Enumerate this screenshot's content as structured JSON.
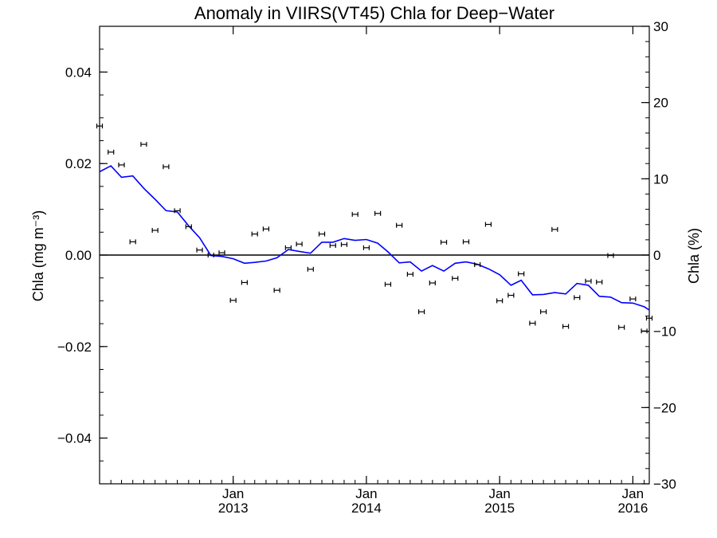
{
  "chart_data": {
    "type": "scatter",
    "title": "Anomaly in VIIRS(VT45) Chla for Deep−Water",
    "ylabel_left": "Chla (mg m⁻³)",
    "ylabel_right": "Chla (%)",
    "xlabel": "",
    "ylim_left": [
      -0.05,
      0.05
    ],
    "ylim_right": [
      -30,
      30
    ],
    "xlim": [
      "2012-01-01",
      "2016-02-15"
    ],
    "grid": false,
    "zero_line": true,
    "left_ticks": [
      {
        "value": 0.04,
        "label": "0.04"
      },
      {
        "value": 0.02,
        "label": "0.02"
      },
      {
        "value": 0.0,
        "label": "0.00"
      },
      {
        "value": -0.02,
        "label": "−0.02"
      },
      {
        "value": -0.04,
        "label": "−0.04"
      }
    ],
    "right_ticks": [
      {
        "value": 30,
        "label": "30"
      },
      {
        "value": 20,
        "label": "20"
      },
      {
        "value": 10,
        "label": "10"
      },
      {
        "value": 0,
        "label": "0"
      },
      {
        "value": -10,
        "label": "−10"
      },
      {
        "value": -20,
        "label": "−20"
      },
      {
        "value": -30,
        "label": "−30"
      }
    ],
    "x_ticks": [
      {
        "date": "2013-01-01",
        "line1": "Jan",
        "line2": "2013"
      },
      {
        "date": "2014-01-01",
        "line1": "Jan",
        "line2": "2014"
      },
      {
        "date": "2015-01-01",
        "line1": "Jan",
        "line2": "2015"
      },
      {
        "date": "2016-01-01",
        "line1": "Jan",
        "line2": "2016"
      }
    ],
    "series": [
      {
        "kind": "errorbar_points",
        "color": "#000000",
        "points": [
          {
            "x": "2012-01-01",
            "y": 0.0282
          },
          {
            "x": "2012-02-01",
            "y": 0.0225
          },
          {
            "x": "2012-03-01",
            "y": 0.0197
          },
          {
            "x": "2012-04-01",
            "y": 0.0029
          },
          {
            "x": "2012-05-01",
            "y": 0.0242
          },
          {
            "x": "2012-06-01",
            "y": 0.0054
          },
          {
            "x": "2012-07-01",
            "y": 0.0193
          },
          {
            "x": "2012-08-01",
            "y": 0.0097
          },
          {
            "x": "2012-09-01",
            "y": 0.0062
          },
          {
            "x": "2012-10-01",
            "y": 0.0011
          },
          {
            "x": "2012-11-01",
            "y": 0.0
          },
          {
            "x": "2012-12-01",
            "y": 0.0005
          },
          {
            "x": "2013-01-01",
            "y": -0.0099
          },
          {
            "x": "2013-02-01",
            "y": -0.006
          },
          {
            "x": "2013-03-01",
            "y": 0.0046
          },
          {
            "x": "2013-04-01",
            "y": 0.0057
          },
          {
            "x": "2013-05-01",
            "y": -0.0077
          },
          {
            "x": "2013-06-01",
            "y": 0.0016
          },
          {
            "x": "2013-07-01",
            "y": 0.0024
          },
          {
            "x": "2013-08-01",
            "y": -0.0031
          },
          {
            "x": "2013-09-01",
            "y": 0.0046
          },
          {
            "x": "2013-10-01",
            "y": 0.0021
          },
          {
            "x": "2013-11-01",
            "y": 0.0023
          },
          {
            "x": "2013-12-01",
            "y": 0.0089
          },
          {
            "x": "2014-01-01",
            "y": 0.0016
          },
          {
            "x": "2014-02-01",
            "y": 0.0091
          },
          {
            "x": "2014-03-01",
            "y": -0.0064
          },
          {
            "x": "2014-04-01",
            "y": 0.0065
          },
          {
            "x": "2014-05-01",
            "y": -0.0042
          },
          {
            "x": "2014-06-01",
            "y": -0.0124
          },
          {
            "x": "2014-07-01",
            "y": -0.0061
          },
          {
            "x": "2014-08-01",
            "y": 0.0028
          },
          {
            "x": "2014-09-01",
            "y": -0.0051
          },
          {
            "x": "2014-10-01",
            "y": 0.0029
          },
          {
            "x": "2014-11-01",
            "y": -0.0021
          },
          {
            "x": "2014-12-01",
            "y": 0.0067
          },
          {
            "x": "2015-01-01",
            "y": -0.01
          },
          {
            "x": "2015-02-01",
            "y": -0.0088
          },
          {
            "x": "2015-03-01",
            "y": -0.0041
          },
          {
            "x": "2015-04-01",
            "y": -0.0149
          },
          {
            "x": "2015-05-01",
            "y": -0.0124
          },
          {
            "x": "2015-06-01",
            "y": 0.0056
          },
          {
            "x": "2015-07-01",
            "y": -0.0156
          },
          {
            "x": "2015-08-01",
            "y": -0.0093
          },
          {
            "x": "2015-09-01",
            "y": -0.0057
          },
          {
            "x": "2015-10-01",
            "y": -0.0059
          },
          {
            "x": "2015-11-01",
            "y": -0.0001
          },
          {
            "x": "2015-12-01",
            "y": -0.0158
          },
          {
            "x": "2016-01-01",
            "y": -0.0096
          },
          {
            "x": "2016-02-01",
            "y": -0.0166
          },
          {
            "x": "2016-02-15",
            "y": -0.0138
          }
        ]
      },
      {
        "kind": "line",
        "color": "#0000ff",
        "points": [
          {
            "x": "2012-01-01",
            "y": 0.0182
          },
          {
            "x": "2012-02-01",
            "y": 0.0195
          },
          {
            "x": "2012-03-01",
            "y": 0.017
          },
          {
            "x": "2012-04-01",
            "y": 0.0173
          },
          {
            "x": "2012-05-01",
            "y": 0.0146
          },
          {
            "x": "2012-06-01",
            "y": 0.0122
          },
          {
            "x": "2012-07-01",
            "y": 0.0097
          },
          {
            "x": "2012-08-01",
            "y": 0.0094
          },
          {
            "x": "2012-09-01",
            "y": 0.0064
          },
          {
            "x": "2012-10-01",
            "y": 0.0038
          },
          {
            "x": "2012-11-01",
            "y": -0.0001
          },
          {
            "x": "2012-12-01",
            "y": -0.0003
          },
          {
            "x": "2013-01-01",
            "y": -0.0008
          },
          {
            "x": "2013-02-01",
            "y": -0.0018
          },
          {
            "x": "2013-03-01",
            "y": -0.0016
          },
          {
            "x": "2013-04-01",
            "y": -0.0013
          },
          {
            "x": "2013-05-01",
            "y": -0.0006
          },
          {
            "x": "2013-06-01",
            "y": 0.0012
          },
          {
            "x": "2013-07-01",
            "y": 0.0008
          },
          {
            "x": "2013-08-01",
            "y": 0.0004
          },
          {
            "x": "2013-09-01",
            "y": 0.0028
          },
          {
            "x": "2013-10-01",
            "y": 0.0028
          },
          {
            "x": "2013-11-01",
            "y": 0.0036
          },
          {
            "x": "2013-12-01",
            "y": 0.0032
          },
          {
            "x": "2014-01-01",
            "y": 0.0034
          },
          {
            "x": "2014-02-01",
            "y": 0.0026
          },
          {
            "x": "2014-03-01",
            "y": 0.0007
          },
          {
            "x": "2014-04-01",
            "y": -0.0017
          },
          {
            "x": "2014-05-01",
            "y": -0.0015
          },
          {
            "x": "2014-06-01",
            "y": -0.0035
          },
          {
            "x": "2014-07-01",
            "y": -0.0023
          },
          {
            "x": "2014-08-01",
            "y": -0.0035
          },
          {
            "x": "2014-09-01",
            "y": -0.0018
          },
          {
            "x": "2014-10-01",
            "y": -0.0015
          },
          {
            "x": "2014-11-01",
            "y": -0.002
          },
          {
            "x": "2014-12-01",
            "y": -0.003
          },
          {
            "x": "2015-01-01",
            "y": -0.0043
          },
          {
            "x": "2015-02-01",
            "y": -0.0066
          },
          {
            "x": "2015-03-01",
            "y": -0.0055
          },
          {
            "x": "2015-04-01",
            "y": -0.0087
          },
          {
            "x": "2015-05-01",
            "y": -0.0086
          },
          {
            "x": "2015-06-01",
            "y": -0.0082
          },
          {
            "x": "2015-07-01",
            "y": -0.0085
          },
          {
            "x": "2015-08-01",
            "y": -0.0062
          },
          {
            "x": "2015-09-01",
            "y": -0.0066
          },
          {
            "x": "2015-10-01",
            "y": -0.009
          },
          {
            "x": "2015-11-01",
            "y": -0.0092
          },
          {
            "x": "2015-12-01",
            "y": -0.0104
          },
          {
            "x": "2016-01-01",
            "y": -0.0105
          },
          {
            "x": "2016-02-01",
            "y": -0.0113
          },
          {
            "x": "2016-02-15",
            "y": -0.012
          }
        ]
      }
    ]
  }
}
